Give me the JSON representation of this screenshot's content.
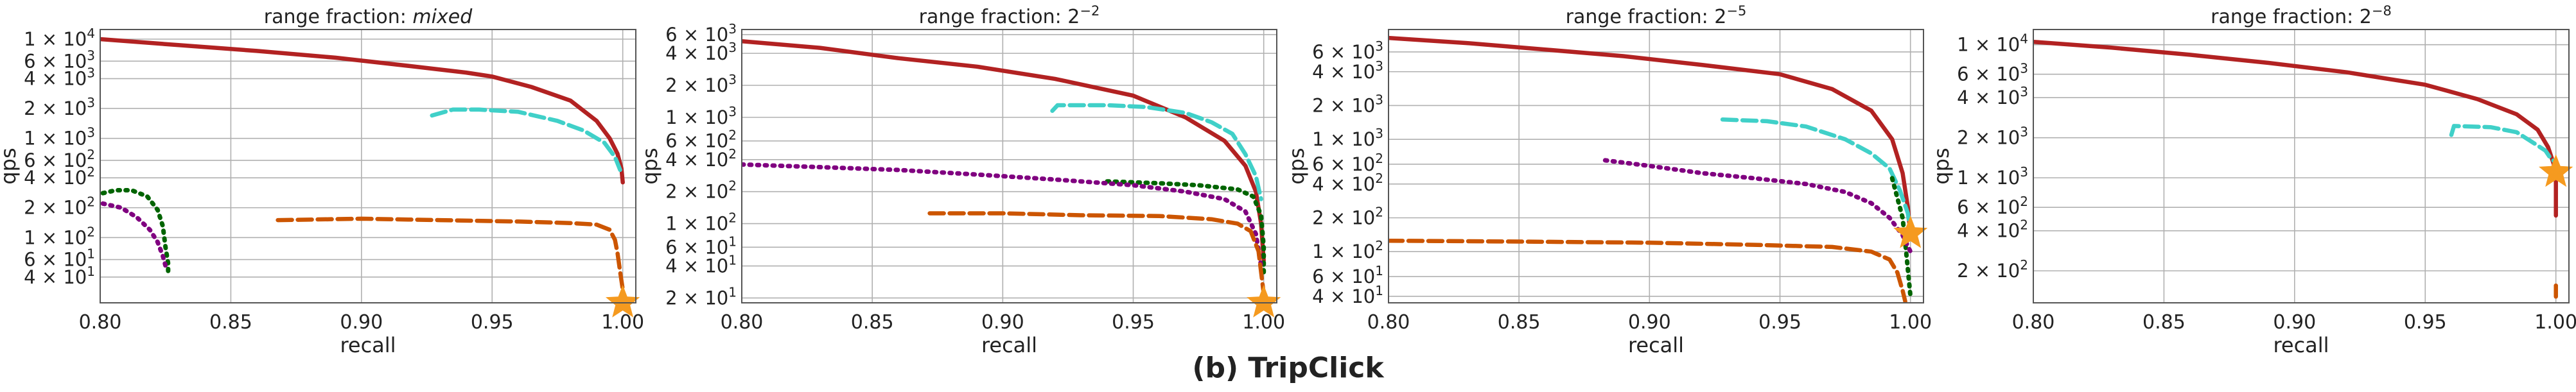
{
  "caption": "(b) TripClick",
  "chart_data": [
    {
      "type": "line",
      "title_prefix": "range fraction: ",
      "title_main": "mixed",
      "title_style": "italic",
      "xlabel": "recall",
      "ylabel": "qps",
      "xlim": [
        0.8,
        1.005
      ],
      "ylim": [
        22,
        12500
      ],
      "yscale": "log",
      "xticks": [
        "0.80",
        "0.85",
        "0.90",
        "0.95",
        "1.00"
      ],
      "yticks": [
        {
          "value": 10000,
          "base": "1 × 10",
          "exp": "4"
        },
        {
          "value": 6000,
          "base": "6 × 10",
          "exp": "3"
        },
        {
          "value": 4000,
          "base": "4 × 10",
          "exp": "3"
        },
        {
          "value": 2000,
          "base": "2 × 10",
          "exp": "3"
        },
        {
          "value": 1000,
          "base": "1 × 10",
          "exp": "3"
        },
        {
          "value": 600,
          "base": "6 × 10",
          "exp": "2"
        },
        {
          "value": 400,
          "base": "4 × 10",
          "exp": "2"
        },
        {
          "value": 200,
          "base": "2 × 10",
          "exp": "2"
        },
        {
          "value": 100,
          "base": "1 × 10",
          "exp": "2"
        },
        {
          "value": 60,
          "base": "6 × 10",
          "exp": "1"
        },
        {
          "value": 40,
          "base": "4 × 10",
          "exp": "1"
        }
      ],
      "grid": true,
      "series": [
        {
          "color": "#b22222",
          "style": "solid",
          "points": [
            [
              0.8,
              10000
            ],
            [
              0.83,
              8700
            ],
            [
              0.86,
              7600
            ],
            [
              0.89,
              6500
            ],
            [
              0.92,
              5300
            ],
            [
              0.94,
              4600
            ],
            [
              0.95,
              4200
            ],
            [
              0.965,
              3300
            ],
            [
              0.98,
              2400
            ],
            [
              0.99,
              1500
            ],
            [
              0.995,
              1000
            ],
            [
              0.998,
              700
            ],
            [
              0.9995,
              500
            ],
            [
              1.0,
              360
            ]
          ]
        },
        {
          "color": "#40d0c8",
          "style": "dashed",
          "points": [
            [
              0.927,
              1700
            ],
            [
              0.935,
              1950
            ],
            [
              0.945,
              1950
            ],
            [
              0.96,
              1850
            ],
            [
              0.975,
              1500
            ],
            [
              0.985,
              1200
            ],
            [
              0.993,
              900
            ],
            [
              0.997,
              650
            ],
            [
              0.999,
              480
            ]
          ]
        },
        {
          "color": "#006400",
          "style": "dotted",
          "points": [
            [
              0.801,
              280
            ],
            [
              0.806,
              300
            ],
            [
              0.812,
              300
            ],
            [
              0.818,
              260
            ],
            [
              0.822,
              190
            ],
            [
              0.824,
              130
            ],
            [
              0.825,
              80
            ],
            [
              0.826,
              55
            ],
            [
              0.826,
              42
            ]
          ]
        },
        {
          "color": "#800080",
          "style": "dotted",
          "points": [
            [
              0.801,
              220
            ],
            [
              0.808,
              200
            ],
            [
              0.814,
              160
            ],
            [
              0.819,
              120
            ],
            [
              0.822,
              90
            ],
            [
              0.824,
              65
            ],
            [
              0.825,
              52
            ]
          ]
        },
        {
          "color": "#cc5500",
          "style": "dashed",
          "points": [
            [
              0.868,
              150
            ],
            [
              0.9,
              155
            ],
            [
              0.93,
              150
            ],
            [
              0.96,
              145
            ],
            [
              0.98,
              140
            ],
            [
              0.99,
              135
            ],
            [
              0.995,
              120
            ],
            [
              0.997,
              95
            ],
            [
              0.998,
              70
            ],
            [
              0.999,
              45
            ],
            [
              1.0,
              30
            ]
          ]
        }
      ],
      "star": {
        "color": "#f59a1f",
        "x": 1.0,
        "y": 22
      }
    },
    {
      "type": "line",
      "title_prefix": "range fraction: ",
      "title_main": "2",
      "title_sup": "−2",
      "xlabel": "recall",
      "ylabel": "qps",
      "xlim": [
        0.8,
        1.005
      ],
      "ylim": [
        18,
        6700
      ],
      "yscale": "log",
      "xticks": [
        "0.80",
        "0.85",
        "0.90",
        "0.95",
        "1.00"
      ],
      "yticks": [
        {
          "value": 6000,
          "base": "6 × 10",
          "exp": "3"
        },
        {
          "value": 4000,
          "base": "4 × 10",
          "exp": "3"
        },
        {
          "value": 2000,
          "base": "2 × 10",
          "exp": "3"
        },
        {
          "value": 1000,
          "base": "1 × 10",
          "exp": "3"
        },
        {
          "value": 600,
          "base": "6 × 10",
          "exp": "2"
        },
        {
          "value": 400,
          "base": "4 × 10",
          "exp": "2"
        },
        {
          "value": 200,
          "base": "2 × 10",
          "exp": "2"
        },
        {
          "value": 100,
          "base": "1 × 10",
          "exp": "2"
        },
        {
          "value": 60,
          "base": "6 × 10",
          "exp": "1"
        },
        {
          "value": 40,
          "base": "4 × 10",
          "exp": "1"
        },
        {
          "value": 20,
          "base": "2 × 10",
          "exp": "1"
        }
      ],
      "grid": true,
      "series": [
        {
          "color": "#b22222",
          "style": "solid",
          "points": [
            [
              0.8,
              5200
            ],
            [
              0.83,
              4500
            ],
            [
              0.86,
              3600
            ],
            [
              0.89,
              3000
            ],
            [
              0.92,
              2300
            ],
            [
              0.95,
              1600
            ],
            [
              0.97,
              1000
            ],
            [
              0.985,
              600
            ],
            [
              0.993,
              350
            ],
            [
              0.997,
              200
            ],
            [
              0.999,
              100
            ],
            [
              1.0,
              45
            ]
          ]
        },
        {
          "color": "#40d0c8",
          "style": "dashed",
          "points": [
            [
              0.919,
              1150
            ],
            [
              0.921,
              1300
            ],
            [
              0.94,
              1300
            ],
            [
              0.955,
              1250
            ],
            [
              0.97,
              1100
            ],
            [
              0.98,
              900
            ],
            [
              0.988,
              700
            ],
            [
              0.993,
              450
            ],
            [
              0.997,
              280
            ],
            [
              0.999,
              170
            ]
          ]
        },
        {
          "color": "#006400",
          "style": "dotted",
          "points": [
            [
              0.94,
              250
            ],
            [
              0.96,
              240
            ],
            [
              0.975,
              230
            ],
            [
              0.99,
              210
            ],
            [
              0.996,
              180
            ],
            [
              0.999,
              120
            ],
            [
              1.0,
              60
            ],
            [
              1.0,
              35
            ]
          ]
        },
        {
          "color": "#800080",
          "style": "dotted",
          "points": [
            [
              0.8,
              360
            ],
            [
              0.83,
              340
            ],
            [
              0.86,
              320
            ],
            [
              0.89,
              290
            ],
            [
              0.92,
              260
            ],
            [
              0.95,
              230
            ],
            [
              0.97,
              200
            ],
            [
              0.985,
              170
            ],
            [
              0.993,
              130
            ],
            [
              0.997,
              80
            ],
            [
              0.999,
              40
            ]
          ]
        },
        {
          "color": "#cc5500",
          "style": "dashed",
          "points": [
            [
              0.872,
              125
            ],
            [
              0.9,
              125
            ],
            [
              0.93,
              120
            ],
            [
              0.96,
              118
            ],
            [
              0.98,
              110
            ],
            [
              0.99,
              100
            ],
            [
              0.995,
              85
            ],
            [
              0.998,
              55
            ],
            [
              0.999,
              35
            ],
            [
              1.0,
              22
            ]
          ]
        }
      ],
      "star": {
        "color": "#f59a1f",
        "x": 1.0,
        "y": 18
      }
    },
    {
      "type": "line",
      "title_prefix": "range fraction: ",
      "title_main": "2",
      "title_sup": "−5",
      "xlabel": "recall",
      "ylabel": "qps",
      "xlim": [
        0.8,
        1.005
      ],
      "ylim": [
        35,
        9500
      ],
      "yscale": "log",
      "xticks": [
        "0.80",
        "0.85",
        "0.90",
        "0.95",
        "1.00"
      ],
      "yticks": [
        {
          "value": 6000,
          "base": "6 × 10",
          "exp": "3"
        },
        {
          "value": 4000,
          "base": "4 × 10",
          "exp": "3"
        },
        {
          "value": 2000,
          "base": "2 × 10",
          "exp": "3"
        },
        {
          "value": 1000,
          "base": "1 × 10",
          "exp": "3"
        },
        {
          "value": 600,
          "base": "6 × 10",
          "exp": "2"
        },
        {
          "value": 400,
          "base": "4 × 10",
          "exp": "2"
        },
        {
          "value": 200,
          "base": "2 × 10",
          "exp": "2"
        },
        {
          "value": 100,
          "base": "1 × 10",
          "exp": "2"
        },
        {
          "value": 60,
          "base": "6 × 10",
          "exp": "1"
        },
        {
          "value": 40,
          "base": "4 × 10",
          "exp": "1"
        }
      ],
      "grid": true,
      "series": [
        {
          "color": "#b22222",
          "style": "solid",
          "points": [
            [
              0.8,
              8000
            ],
            [
              0.83,
              7200
            ],
            [
              0.86,
              6300
            ],
            [
              0.89,
              5500
            ],
            [
              0.92,
              4600
            ],
            [
              0.95,
              3800
            ],
            [
              0.97,
              2800
            ],
            [
              0.985,
              1800
            ],
            [
              0.993,
              1000
            ],
            [
              0.997,
              500
            ],
            [
              0.999,
              250
            ],
            [
              1.0,
              140
            ]
          ]
        },
        {
          "color": "#40d0c8",
          "style": "dashed",
          "points": [
            [
              0.928,
              1500
            ],
            [
              0.945,
              1450
            ],
            [
              0.96,
              1300
            ],
            [
              0.975,
              1000
            ],
            [
              0.985,
              750
            ],
            [
              0.992,
              550
            ],
            [
              0.996,
              350
            ],
            [
              0.999,
              220
            ],
            [
              1.0,
              150
            ]
          ]
        },
        {
          "color": "#006400",
          "style": "dotted",
          "points": [
            [
              0.993,
              450
            ],
            [
              0.995,
              300
            ],
            [
              0.997,
              200
            ],
            [
              0.998,
              120
            ],
            [
              0.999,
              70
            ],
            [
              1.0,
              40
            ]
          ]
        },
        {
          "color": "#800080",
          "style": "dotted",
          "points": [
            [
              0.883,
              650
            ],
            [
              0.9,
              580
            ],
            [
              0.92,
              500
            ],
            [
              0.94,
              450
            ],
            [
              0.96,
              400
            ],
            [
              0.975,
              340
            ],
            [
              0.985,
              270
            ],
            [
              0.992,
              200
            ],
            [
              0.997,
              140
            ],
            [
              1.0,
              100
            ]
          ]
        },
        {
          "color": "#cc5500",
          "style": "dashed",
          "points": [
            [
              0.8,
              125
            ],
            [
              0.85,
              123
            ],
            [
              0.9,
              120
            ],
            [
              0.94,
              115
            ],
            [
              0.97,
              110
            ],
            [
              0.985,
              100
            ],
            [
              0.992,
              85
            ],
            [
              0.995,
              65
            ],
            [
              0.997,
              45
            ],
            [
              0.998,
              36
            ]
          ]
        }
      ],
      "star": {
        "color": "#f59a1f",
        "x": 1.0,
        "y": 145
      }
    },
    {
      "type": "line",
      "title_prefix": "range fraction: ",
      "title_main": "2",
      "title_sup": "−8",
      "xlabel": "recall",
      "ylabel": "qps",
      "xlim": [
        0.8,
        1.005
      ],
      "ylim": [
        115,
        13000
      ],
      "yscale": "log",
      "xticks": [
        "0.80",
        "0.85",
        "0.90",
        "0.95",
        "1.00"
      ],
      "yticks": [
        {
          "value": 10000,
          "base": "1 × 10",
          "exp": "4"
        },
        {
          "value": 6000,
          "base": "6 × 10",
          "exp": "3"
        },
        {
          "value": 4000,
          "base": "4 × 10",
          "exp": "3"
        },
        {
          "value": 2000,
          "base": "2 × 10",
          "exp": "3"
        },
        {
          "value": 1000,
          "base": "1 × 10",
          "exp": "3"
        },
        {
          "value": 600,
          "base": "6 × 10",
          "exp": "2"
        },
        {
          "value": 400,
          "base": "4 × 10",
          "exp": "2"
        },
        {
          "value": 200,
          "base": "2 × 10",
          "exp": "2"
        }
      ],
      "grid": true,
      "series": [
        {
          "color": "#b22222",
          "style": "solid",
          "points": [
            [
              0.8,
              10500
            ],
            [
              0.83,
              9500
            ],
            [
              0.86,
              8400
            ],
            [
              0.89,
              7300
            ],
            [
              0.92,
              6200
            ],
            [
              0.95,
              5000
            ],
            [
              0.97,
              3900
            ],
            [
              0.985,
              3000
            ],
            [
              0.993,
              2300
            ],
            [
              0.997,
              1700
            ],
            [
              0.999,
              1300
            ],
            [
              1.0,
              1100
            ],
            [
              1.0,
              800
            ],
            [
              1.0,
              520
            ]
          ]
        },
        {
          "color": "#40d0c8",
          "style": "dashed",
          "points": [
            [
              0.96,
              2100
            ],
            [
              0.961,
              2450
            ],
            [
              0.975,
              2400
            ],
            [
              0.985,
              2200
            ],
            [
              0.992,
              1800
            ],
            [
              0.996,
              1600
            ],
            [
              0.998,
              1400
            ],
            [
              1.0,
              1300
            ]
          ]
        },
        {
          "color": "#cc5500",
          "style": "dashed",
          "points": [
            [
              1.0,
              155
            ],
            [
              1.0,
              140
            ],
            [
              1.0,
              128
            ]
          ]
        }
      ],
      "star": {
        "color": "#f59a1f",
        "x": 1.0,
        "y": 1100
      }
    }
  ]
}
